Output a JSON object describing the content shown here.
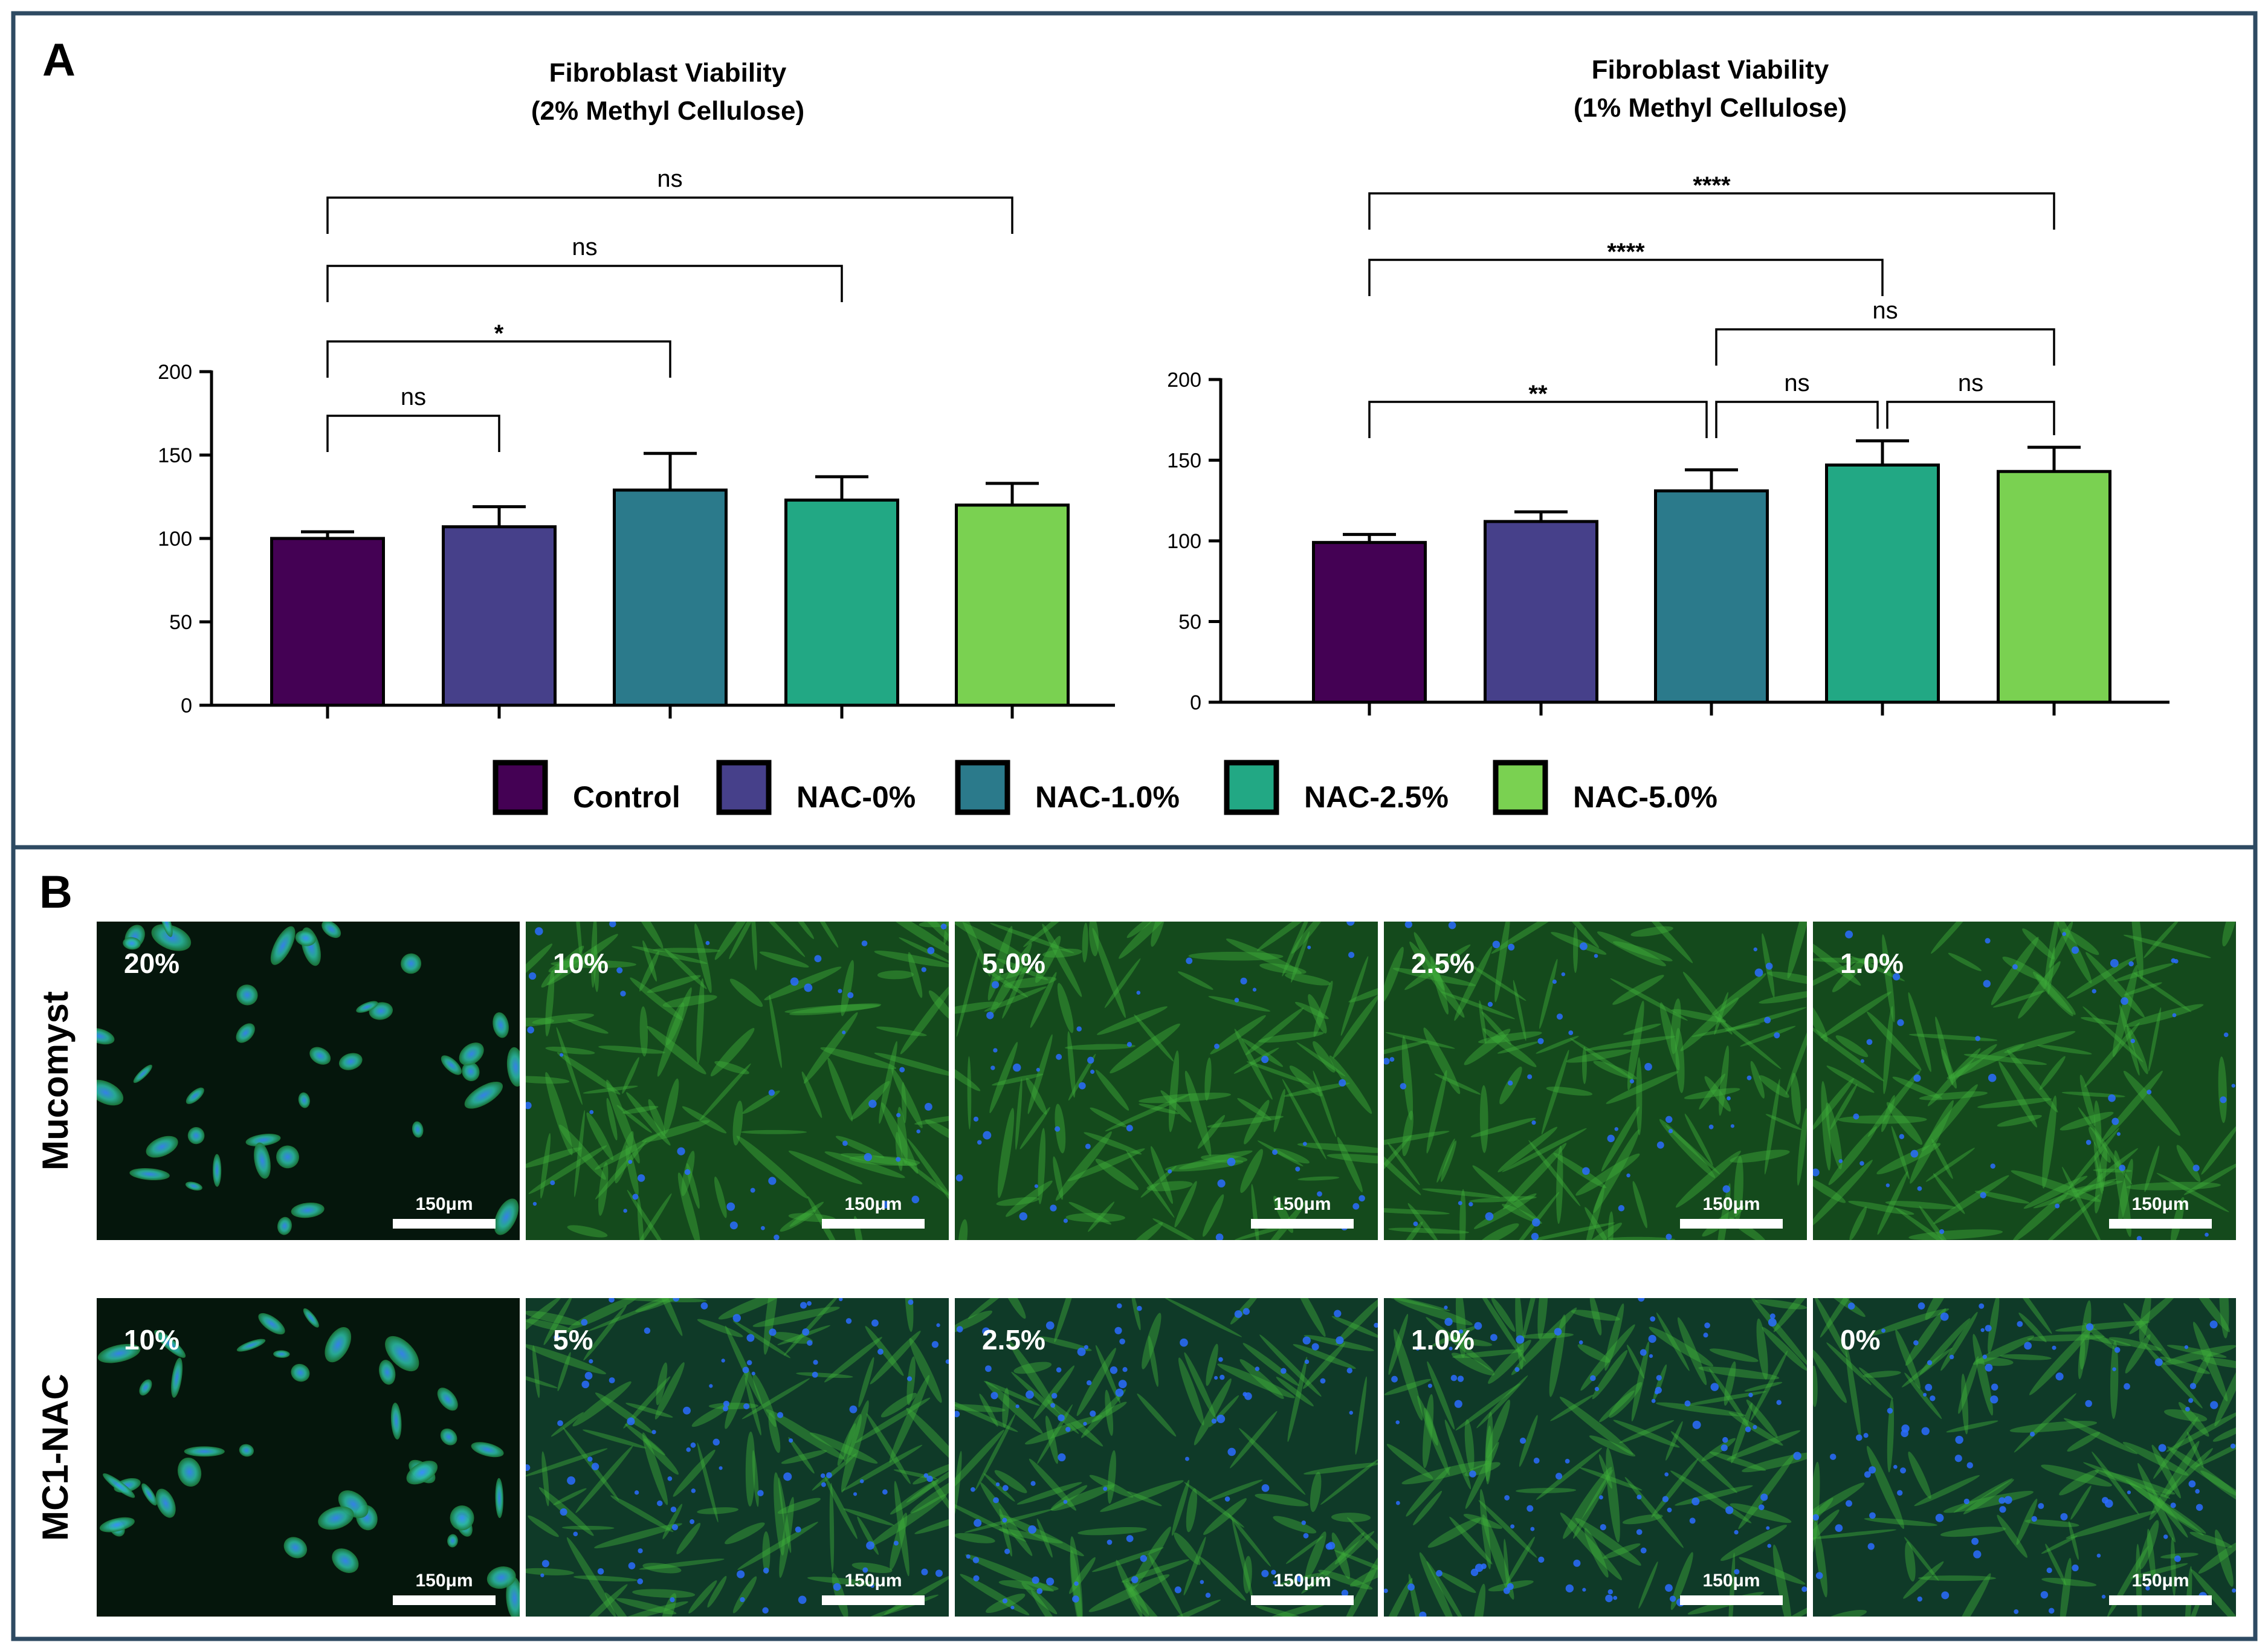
{
  "panels": {
    "a_label": "A",
    "b_label": "B"
  },
  "chart_data": [
    {
      "type": "bar",
      "title": "Fibroblast Viability",
      "subtitle": "(2% Methyl  Cellulose)",
      "categories": [
        "Control",
        "NAC-0%",
        "NAC-1.0%",
        "NAC-2.5%",
        "NAC-5.0%"
      ],
      "values": [
        100,
        107,
        129,
        123,
        120
      ],
      "errors": [
        4,
        12,
        22,
        14,
        13
      ],
      "ylim": [
        0,
        200
      ],
      "yticks": [
        "0",
        "50",
        "100",
        "150",
        "200"
      ],
      "colors": [
        "#440154",
        "#46408a",
        "#2b7a8b",
        "#22a884",
        "#7ad151"
      ],
      "significance": [
        {
          "from": 0,
          "to": 1,
          "label": "ns",
          "level": 0
        },
        {
          "from": 0,
          "to": 2,
          "label": "*",
          "level": 1
        },
        {
          "from": 0,
          "to": 3,
          "label": "ns",
          "level": 2
        },
        {
          "from": 0,
          "to": 4,
          "label": "ns",
          "level": 3
        }
      ]
    },
    {
      "type": "bar",
      "title": "Fibroblast Viability",
      "subtitle": "(1% Methyl  Cellulose)",
      "categories": [
        "Control",
        "NAC-0%",
        "NAC-1.0%",
        "NAC-2.5%",
        "NAC-5.0%"
      ],
      "values": [
        99,
        112,
        131,
        147,
        143
      ],
      "errors": [
        5,
        6,
        13,
        15,
        15
      ],
      "ylim": [
        0,
        200
      ],
      "yticks": [
        "0",
        "50",
        "100",
        "150",
        "200"
      ],
      "colors": [
        "#440154",
        "#46408a",
        "#2b7a8b",
        "#22a884",
        "#7ad151"
      ],
      "significance": [
        {
          "from": 0,
          "to": 2,
          "label": "**",
          "level": 0
        },
        {
          "from": 2,
          "to": 3,
          "label": "ns",
          "level": 0
        },
        {
          "from": 3,
          "to": 4,
          "label": "ns",
          "level": 0
        },
        {
          "from": 2,
          "to": 4,
          "label": "ns",
          "level": 1
        },
        {
          "from": 0,
          "to": 3,
          "label": "****",
          "level": 2
        },
        {
          "from": 0,
          "to": 4,
          "label": "****",
          "level": 3
        }
      ]
    }
  ],
  "legend": [
    {
      "label": "Control",
      "color": "#440154"
    },
    {
      "label": "NAC-0%",
      "color": "#46408a"
    },
    {
      "label": "NAC-1.0%",
      "color": "#2b7a8b"
    },
    {
      "label": "NAC-2.5%",
      "color": "#22a884"
    },
    {
      "label": "NAC-5.0%",
      "color": "#7ad151"
    }
  ],
  "micrographs": {
    "scale_bar_label": "150μm",
    "rows": [
      {
        "label": "Mucomyst",
        "concentrations": [
          "20%",
          "10%",
          "5.0%",
          "2.5%",
          "1.0%"
        ]
      },
      {
        "label": "MC1-NAC",
        "concentrations": [
          "10%",
          "5%",
          "2.5%",
          "1.0%",
          "0%"
        ]
      }
    ]
  }
}
